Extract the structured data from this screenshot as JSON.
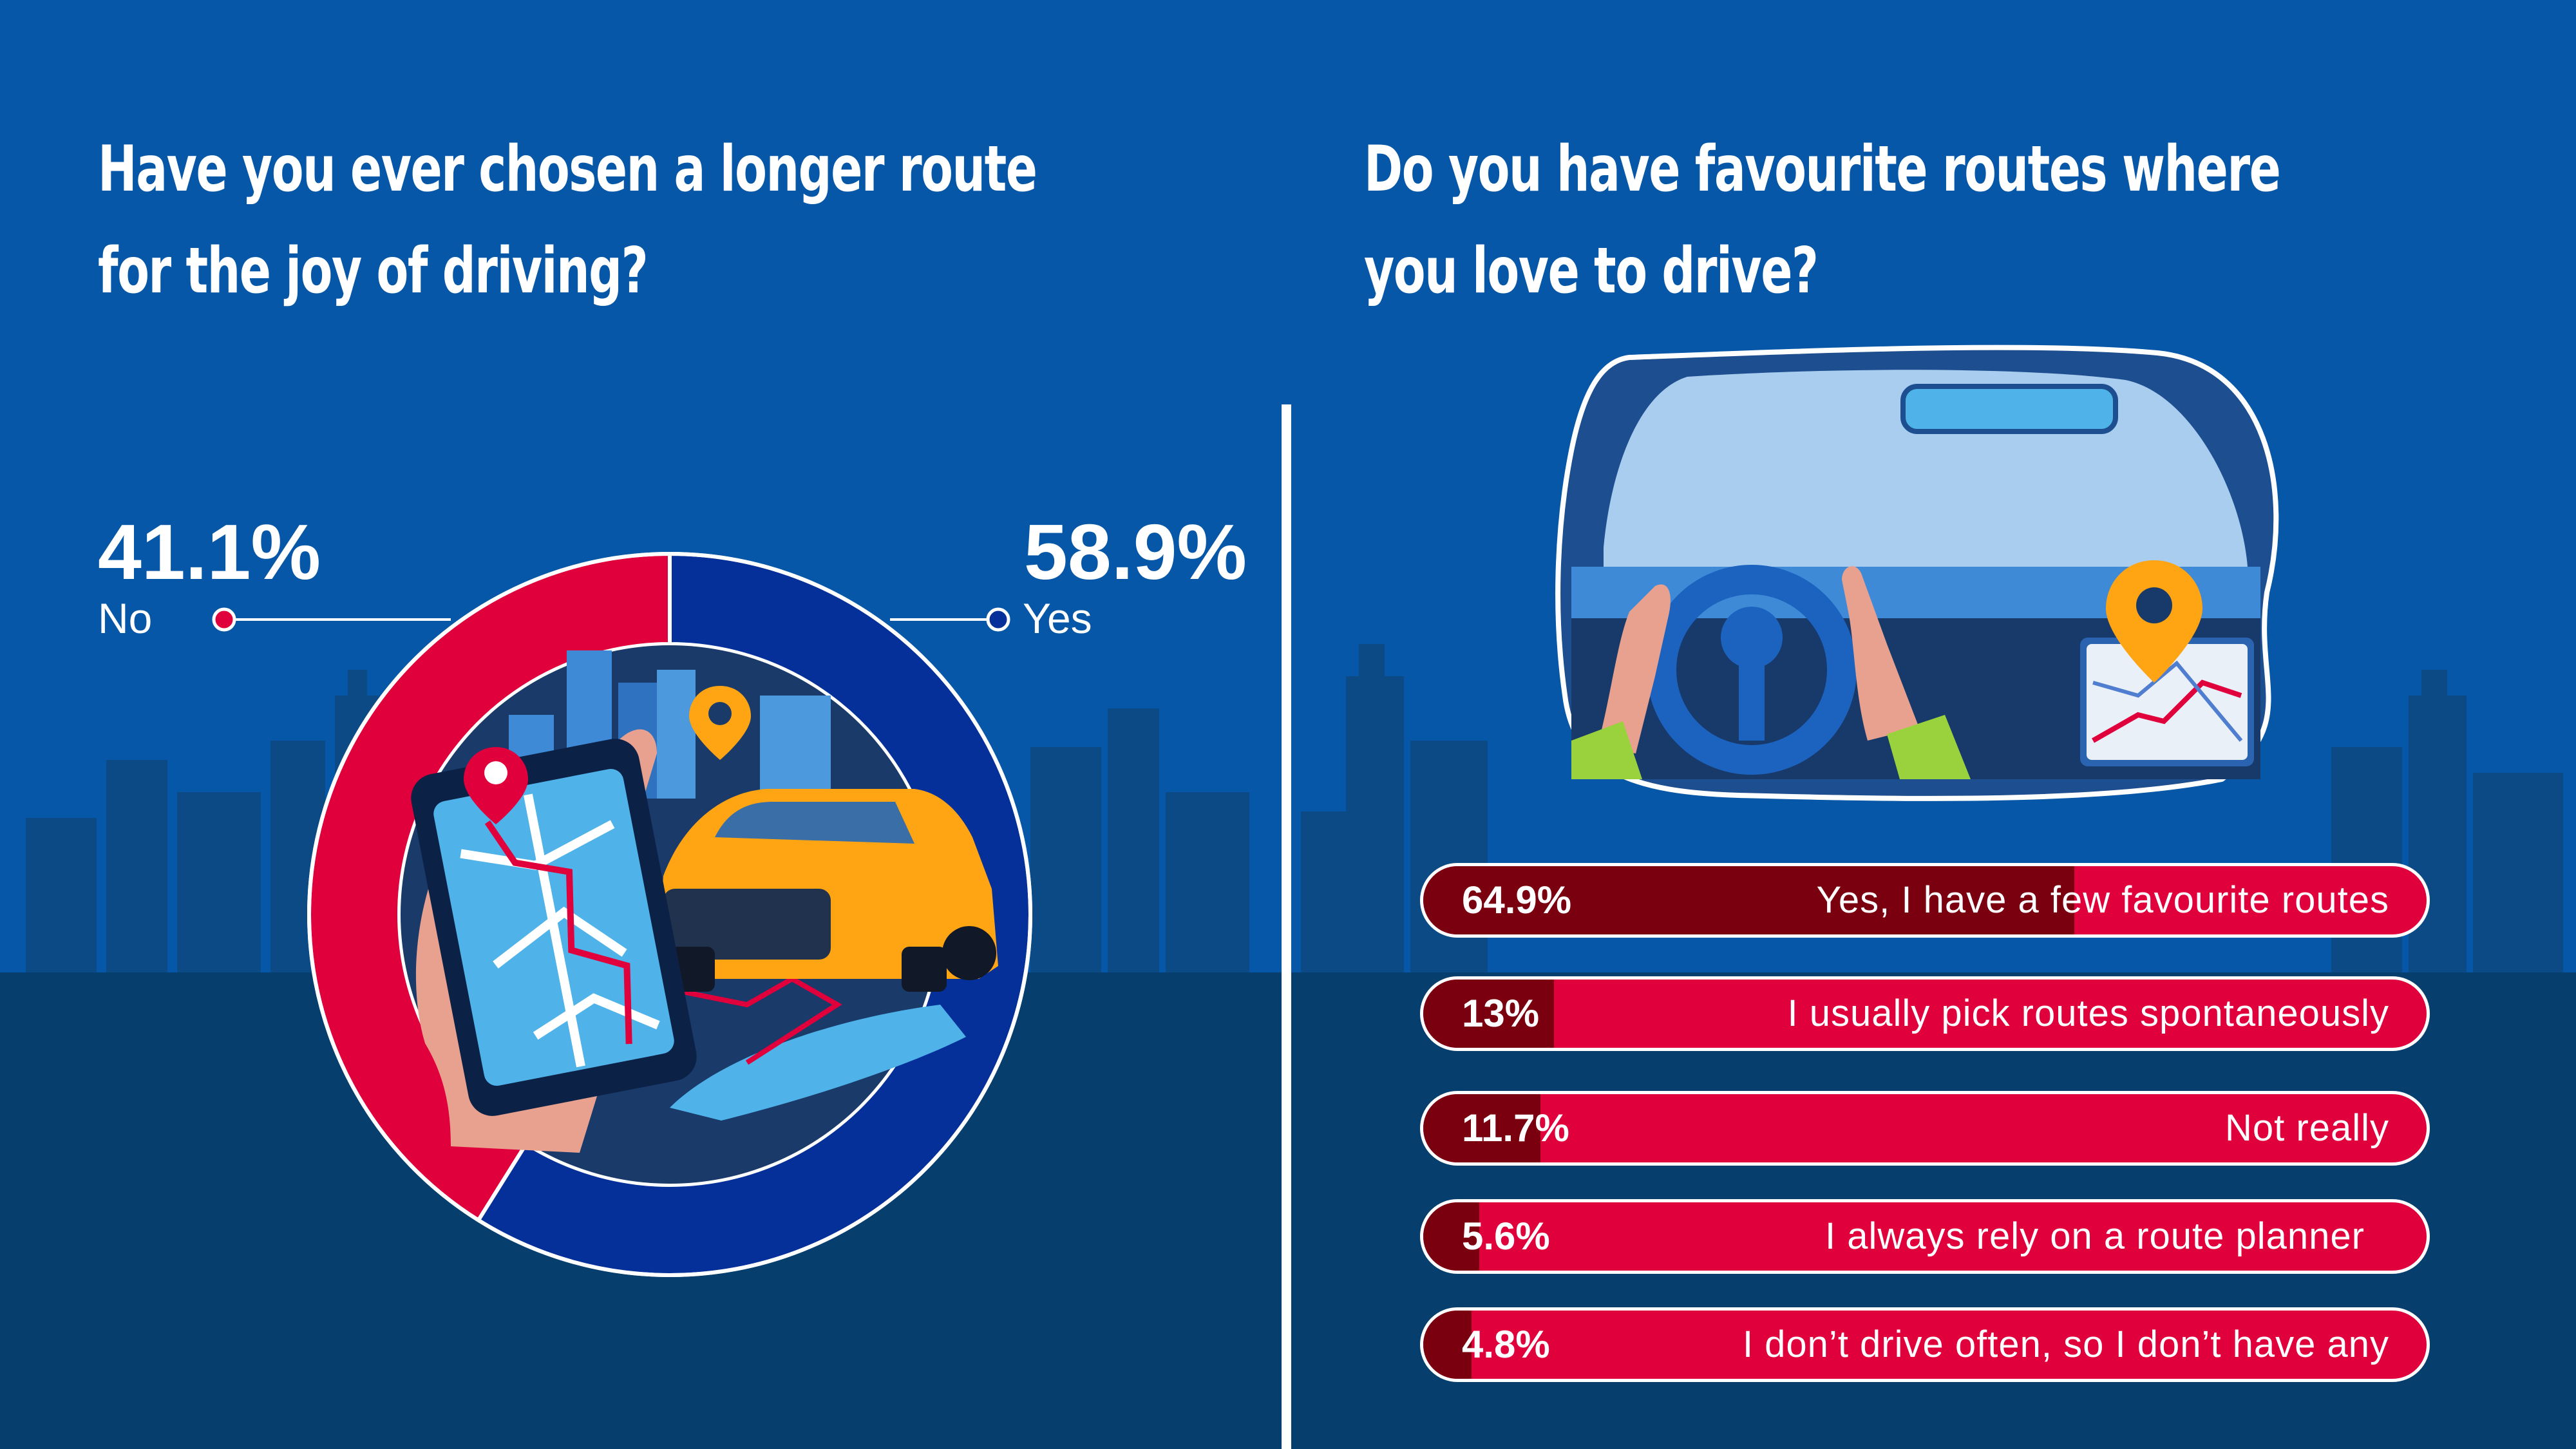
{
  "colors": {
    "background": "#0657a8",
    "ground": "#063e6e",
    "skyline": "#0c4a86",
    "no": "#e0003c",
    "yes": "#05309a",
    "bar": "#e0003c",
    "bar_fill": "#7a0010",
    "text": "#ffffff"
  },
  "chart_data": [
    {
      "type": "pie",
      "title": "Have you ever chosen a longer route for the joy of driving?",
      "categories": [
        "No",
        "Yes"
      ],
      "values": [
        41.1,
        58.9
      ],
      "value_labels": [
        "41.1%",
        "58.9%"
      ],
      "colors": [
        "#e0003c",
        "#05309a"
      ]
    },
    {
      "type": "bar",
      "orientation": "horizontal",
      "title": "Do you have favourite routes where you love to drive?",
      "categories": [
        "Yes, I have a few favourite routes",
        "I usually pick routes spontaneously",
        "Not really",
        "I always rely on a route planner",
        "I don’t drive often, so I don’t have any"
      ],
      "values": [
        64.9,
        13,
        11.7,
        5.6,
        4.8
      ],
      "value_labels": [
        "64.9%",
        "13%",
        "11.7%",
        "5.6%",
        "4.8%"
      ]
    }
  ],
  "illustrations": {
    "left": "phone-map-and-car-icon",
    "right": "steering-wheel-dashboard-icon"
  }
}
